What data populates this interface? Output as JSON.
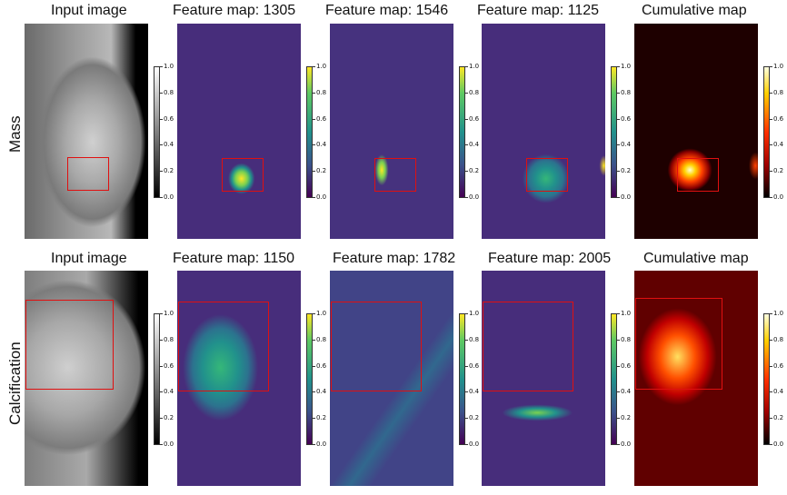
{
  "titles": {
    "row1": [
      "Input image",
      "Feature map: 1305",
      "Feature map: 1546",
      "Feature map: 1125",
      "Cumulative map"
    ],
    "row2": [
      "Input image",
      "Feature map: 1150",
      "Feature map: 1782",
      "Feature map: 2005",
      "Cumulative map"
    ]
  },
  "row_labels": {
    "row1": "Mass",
    "row2": "Calcification"
  },
  "colorbar": {
    "ticks": [
      "1.0",
      "0.8",
      "0.6",
      "0.4",
      "0.2",
      "0.0"
    ]
  },
  "colors": {
    "roi": "#e01010",
    "gray_top": "#ffffff",
    "gray_bottom": "#000000",
    "viridis_top": "#fde725",
    "viridis_mid": "#21918c",
    "viridis_bottom": "#440154",
    "hot_top": "#ffffe0",
    "hot_mid": "#ff3000",
    "hot_bottom": "#000000"
  }
}
